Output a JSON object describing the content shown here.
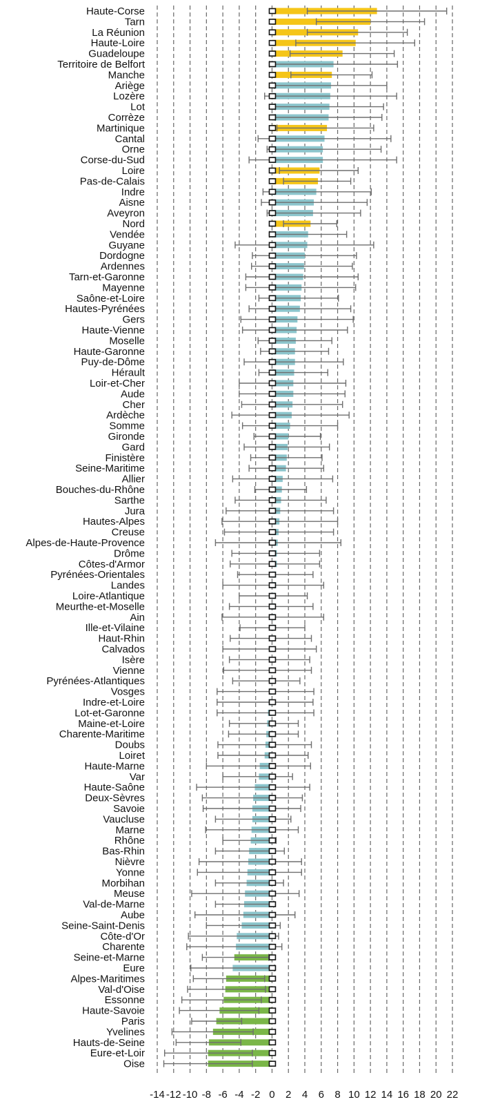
{
  "colors": {
    "above": "#f5c518",
    "not_significant": "#8cc5cc",
    "below": "#7ab648",
    "error_bar": "#6e6e6e",
    "grid": "#666666",
    "marker_fill": "#ffffff",
    "marker_stroke": "#111111"
  },
  "chart_data": {
    "type": "bar",
    "orientation": "horizontal",
    "title": "",
    "xlabel": "",
    "ylabel": "",
    "xlim": [
      -14,
      22
    ],
    "xticks": [
      "-14",
      "-12",
      "-10",
      "-8",
      "-6",
      "-4",
      "-2",
      "0",
      "2",
      "4",
      "6",
      "8",
      "10",
      "12",
      "14",
      "16",
      "18",
      "20",
      "22"
    ],
    "grid": true,
    "legend": "none",
    "categories": [
      "Haute-Corse",
      "Tarn",
      "La Réunion",
      "Haute-Loire",
      "Guadeloupe",
      "Territoire de Belfort",
      "Manche",
      "Ariège",
      "Lozère",
      "Lot",
      "Corrèze",
      "Martinique",
      "Cantal",
      "Orne",
      "Corse-du-Sud",
      "Loire",
      "Pas-de-Calais",
      "Indre",
      "Aisne",
      "Aveyron",
      "Nord",
      "Vendée",
      "Guyane",
      "Dordogne",
      "Ardennes",
      "Tarn-et-Garonne",
      "Mayenne",
      "Saône-et-Loire",
      "Hautes-Pyrénées",
      "Gers",
      "Haute-Vienne",
      "Moselle",
      "Haute-Garonne",
      "Puy-de-Dôme",
      "Hérault",
      "Loir-et-Cher",
      "Aude",
      "Cher",
      "Ardèche",
      "Somme",
      "Gironde",
      "Gard",
      "Finistère",
      "Seine-Maritime",
      "Allier",
      "Bouches-du-Rhône",
      "Sarthe",
      "Jura",
      "Hautes-Alpes",
      "Creuse",
      "Alpes-de-Haute-Provence",
      "Drôme",
      "Côtes-d'Armor",
      "Pyrénées-Orientales",
      "Landes",
      "Loire-Atlantique",
      "Meurthe-et-Moselle",
      "Ain",
      "Ille-et-Vilaine",
      "Haut-Rhin",
      "Calvados",
      "Isère",
      "Vienne",
      "Pyrénées-Atlantiques",
      "Vosges",
      "Indre-et-Loire",
      "Lot-et-Garonne",
      "Maine-et-Loire",
      "Charente-Maritime",
      "Doubs",
      "Loiret",
      "Haute-Marne",
      "Var",
      "Haute-Saône",
      "Deux-Sèvres",
      "Savoie",
      "Vaucluse",
      "Marne",
      "Rhône",
      "Bas-Rhin",
      "Nièvre",
      "Yonne",
      "Morbihan",
      "Meuse",
      "Val-de-Marne",
      "Aube",
      "Seine-Saint-Denis",
      "Côte-d'Or",
      "Charente",
      "Seine-et-Marne",
      "Eure",
      "Alpes-Maritimes",
      "Val-d'Oise",
      "Essonne",
      "Haute-Savoie",
      "Paris",
      "Yvelines",
      "Hauts-de-Seine",
      "Eure-et-Loir",
      "Oise"
    ],
    "values": [
      12.8,
      12.0,
      10.5,
      10.2,
      8.6,
      7.5,
      7.3,
      7.2,
      7.1,
      7.0,
      6.9,
      6.7,
      6.4,
      6.2,
      6.2,
      5.8,
      5.6,
      5.4,
      5.1,
      5.0,
      4.7,
      4.4,
      4.3,
      4.0,
      3.9,
      3.8,
      3.6,
      3.5,
      3.4,
      3.1,
      3.0,
      2.9,
      2.8,
      2.8,
      2.7,
      2.6,
      2.6,
      2.5,
      2.4,
      2.2,
      2.0,
      1.9,
      1.8,
      1.7,
      1.3,
      1.2,
      1.1,
      1.0,
      0.9,
      0.8,
      0.7,
      0.6,
      0.6,
      0.5,
      0.5,
      0.4,
      0.3,
      0.3,
      0.2,
      0.1,
      0.0,
      0.0,
      -0.1,
      -0.2,
      -0.3,
      -0.4,
      -0.5,
      -0.6,
      -0.7,
      -0.8,
      -0.9,
      -1.5,
      -1.6,
      -2.1,
      -2.3,
      -2.4,
      -2.4,
      -2.5,
      -2.6,
      -2.8,
      -2.9,
      -3.0,
      -3.1,
      -3.3,
      -3.4,
      -3.5,
      -3.7,
      -4.3,
      -4.4,
      -4.6,
      -4.8,
      -5.6,
      -5.7,
      -5.9,
      -6.4,
      -6.8,
      -7.2,
      -7.7,
      -7.8,
      -7.8
    ],
    "ci_low": [
      4.3,
      5.4,
      4.3,
      2.9,
      2.2,
      -0.3,
      2.3,
      0.3,
      -0.9,
      0.4,
      0.4,
      0.6,
      -1.7,
      -0.6,
      -2.8,
      0.9,
      1.4,
      -1.1,
      -1.3,
      -0.6,
      1.4,
      -0.3,
      -4.5,
      -2.4,
      -2.5,
      -3.2,
      -3.2,
      -1.6,
      -2.8,
      -3.8,
      -3.6,
      -1.7,
      -1.4,
      -3.4,
      -1.6,
      -4.0,
      -4.0,
      -3.7,
      -4.9,
      -3.6,
      -2.2,
      -3.4,
      -2.6,
      -2.8,
      -4.8,
      -2.1,
      -4.5,
      -5.6,
      -6.1,
      -5.8,
      -6.9,
      -4.9,
      -5.1,
      -4.2,
      -6.0,
      -4.0,
      -5.2,
      -6.1,
      -3.9,
      -5.1,
      -6.0,
      -5.2,
      -5.9,
      -4.8,
      -6.7,
      -6.7,
      -6.7,
      -5.2,
      -5.3,
      -6.6,
      -6.6,
      -8.0,
      -6.0,
      -9.2,
      -8.5,
      -8.4,
      -6.9,
      -8.1,
      -6.0,
      -6.9,
      -8.9,
      -9.1,
      -6.9,
      -9.8,
      -6.9,
      -9.4,
      -8.0,
      -10.2,
      -10.4,
      -8.5,
      -9.9,
      -9.6,
      -10.3,
      -11.0,
      -11.3,
      -9.8,
      -12.2,
      -11.7,
      -13.1,
      -13.2
    ],
    "ci_high": [
      21.3,
      18.6,
      16.5,
      17.4,
      14.9,
      15.3,
      12.2,
      14.0,
      15.2,
      13.6,
      13.4,
      12.4,
      14.5,
      13.3,
      15.2,
      10.5,
      9.6,
      12.1,
      11.6,
      10.8,
      7.9,
      9.1,
      12.4,
      10.3,
      9.8,
      10.5,
      10.2,
      8.1,
      9.6,
      9.9,
      9.2,
      7.3,
      6.9,
      8.7,
      6.8,
      9.0,
      8.9,
      8.6,
      9.4,
      8.0,
      5.9,
      7.0,
      6.1,
      6.3,
      7.4,
      4.2,
      6.6,
      7.5,
      8.0,
      7.5,
      8.4,
      5.8,
      5.8,
      5.0,
      6.3,
      4.3,
      5.0,
      6.3,
      4.0,
      4.8,
      5.4,
      4.6,
      4.8,
      3.4,
      5.1,
      5.0,
      5.1,
      3.2,
      3.2,
      4.8,
      4.4,
      4.7,
      2.5,
      4.6,
      3.7,
      3.5,
      2.3,
      3.2,
      0.5,
      1.5,
      3.6,
      3.6,
      1.4,
      3.3,
      0.2,
      2.8,
      1.0,
      0.8,
      1.2,
      -0.4,
      0.3,
      -0.9,
      -0.8,
      -1.3,
      -1.6,
      -3.7,
      -2.3,
      -3.8,
      -2.4,
      -2.4
    ],
    "significance": [
      "above",
      "above",
      "above",
      "above",
      "above",
      "ns",
      "above",
      "ns",
      "ns",
      "ns",
      "ns",
      "above",
      "ns",
      "ns",
      "ns",
      "above",
      "above",
      "ns",
      "ns",
      "ns",
      "above",
      "ns",
      "ns",
      "ns",
      "ns",
      "ns",
      "ns",
      "ns",
      "ns",
      "ns",
      "ns",
      "ns",
      "ns",
      "ns",
      "ns",
      "ns",
      "ns",
      "ns",
      "ns",
      "ns",
      "ns",
      "ns",
      "ns",
      "ns",
      "ns",
      "ns",
      "ns",
      "ns",
      "ns",
      "ns",
      "ns",
      "ns",
      "ns",
      "ns",
      "ns",
      "ns",
      "ns",
      "ns",
      "ns",
      "ns",
      "ns",
      "ns",
      "ns",
      "ns",
      "ns",
      "ns",
      "ns",
      "ns",
      "ns",
      "ns",
      "ns",
      "ns",
      "ns",
      "ns",
      "ns",
      "ns",
      "ns",
      "ns",
      "ns",
      "ns",
      "ns",
      "ns",
      "ns",
      "ns",
      "ns",
      "ns",
      "ns",
      "ns",
      "ns",
      "below",
      "ns",
      "below",
      "below",
      "below",
      "below",
      "below",
      "below",
      "below",
      "below",
      "below"
    ]
  }
}
